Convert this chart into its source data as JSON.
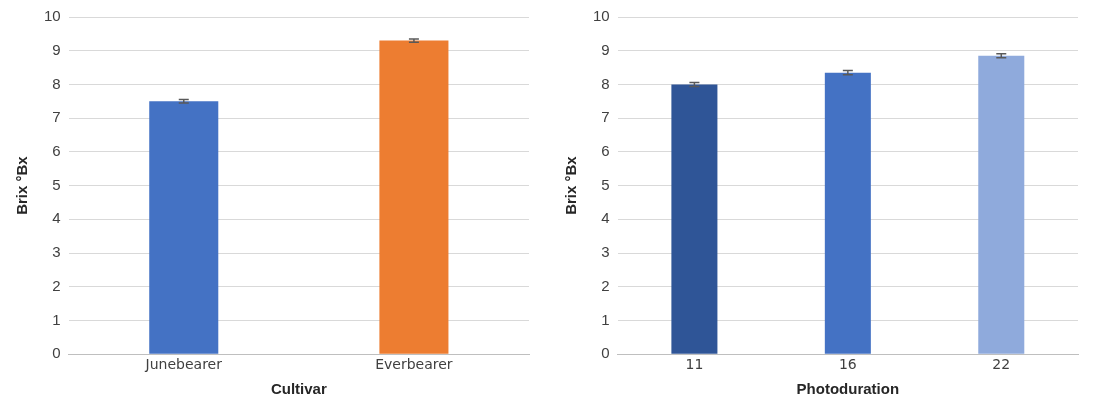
{
  "chart_data": [
    {
      "type": "bar",
      "xlabel": "Cultivar",
      "ylabel": "Brix °Bx",
      "categories": [
        "Junebearer",
        "Everbearer"
      ],
      "values": [
        7.5,
        9.3
      ],
      "colors": [
        "#4472c4",
        "#ed7d31"
      ],
      "errors": [
        0.05,
        0.05
      ],
      "ylim": [
        0,
        10
      ],
      "yticks": [
        0,
        1,
        2,
        3,
        4,
        5,
        6,
        7,
        8,
        9,
        10
      ],
      "grid": "y",
      "legend": false
    },
    {
      "type": "bar",
      "xlabel": "Photoduration",
      "ylabel": "Brix °Bx",
      "categories": [
        "11",
        "16",
        "22"
      ],
      "values": [
        8.0,
        8.35,
        8.85
      ],
      "colors": [
        "#2f5597",
        "#4472c4",
        "#8faadc"
      ],
      "errors": [
        0.06,
        0.06,
        0.06
      ],
      "ylim": [
        0,
        10
      ],
      "yticks": [
        0,
        1,
        2,
        3,
        4,
        5,
        6,
        7,
        8,
        9,
        10
      ],
      "grid": "y",
      "legend": false
    }
  ]
}
